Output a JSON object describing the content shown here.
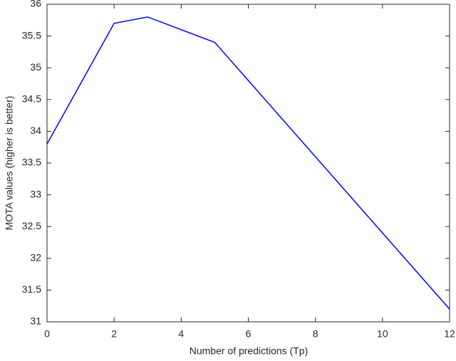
{
  "chart_data": {
    "type": "line",
    "xlabel": "Number of predictions (Tp)",
    "ylabel": "MOTA values (higher is better)",
    "x": [
      0,
      2,
      3,
      5,
      12
    ],
    "values": [
      33.8,
      35.7,
      35.8,
      35.4,
      31.2
    ],
    "color": "#0000ff",
    "xlim": [
      0,
      12
    ],
    "xticks": [
      0,
      2,
      4,
      6,
      8,
      10,
      12
    ],
    "ylim": [
      31,
      36
    ],
    "yticks": [
      31,
      31.5,
      32,
      32.5,
      33,
      33.5,
      34,
      34.5,
      35,
      35.5,
      36
    ],
    "box": true
  }
}
